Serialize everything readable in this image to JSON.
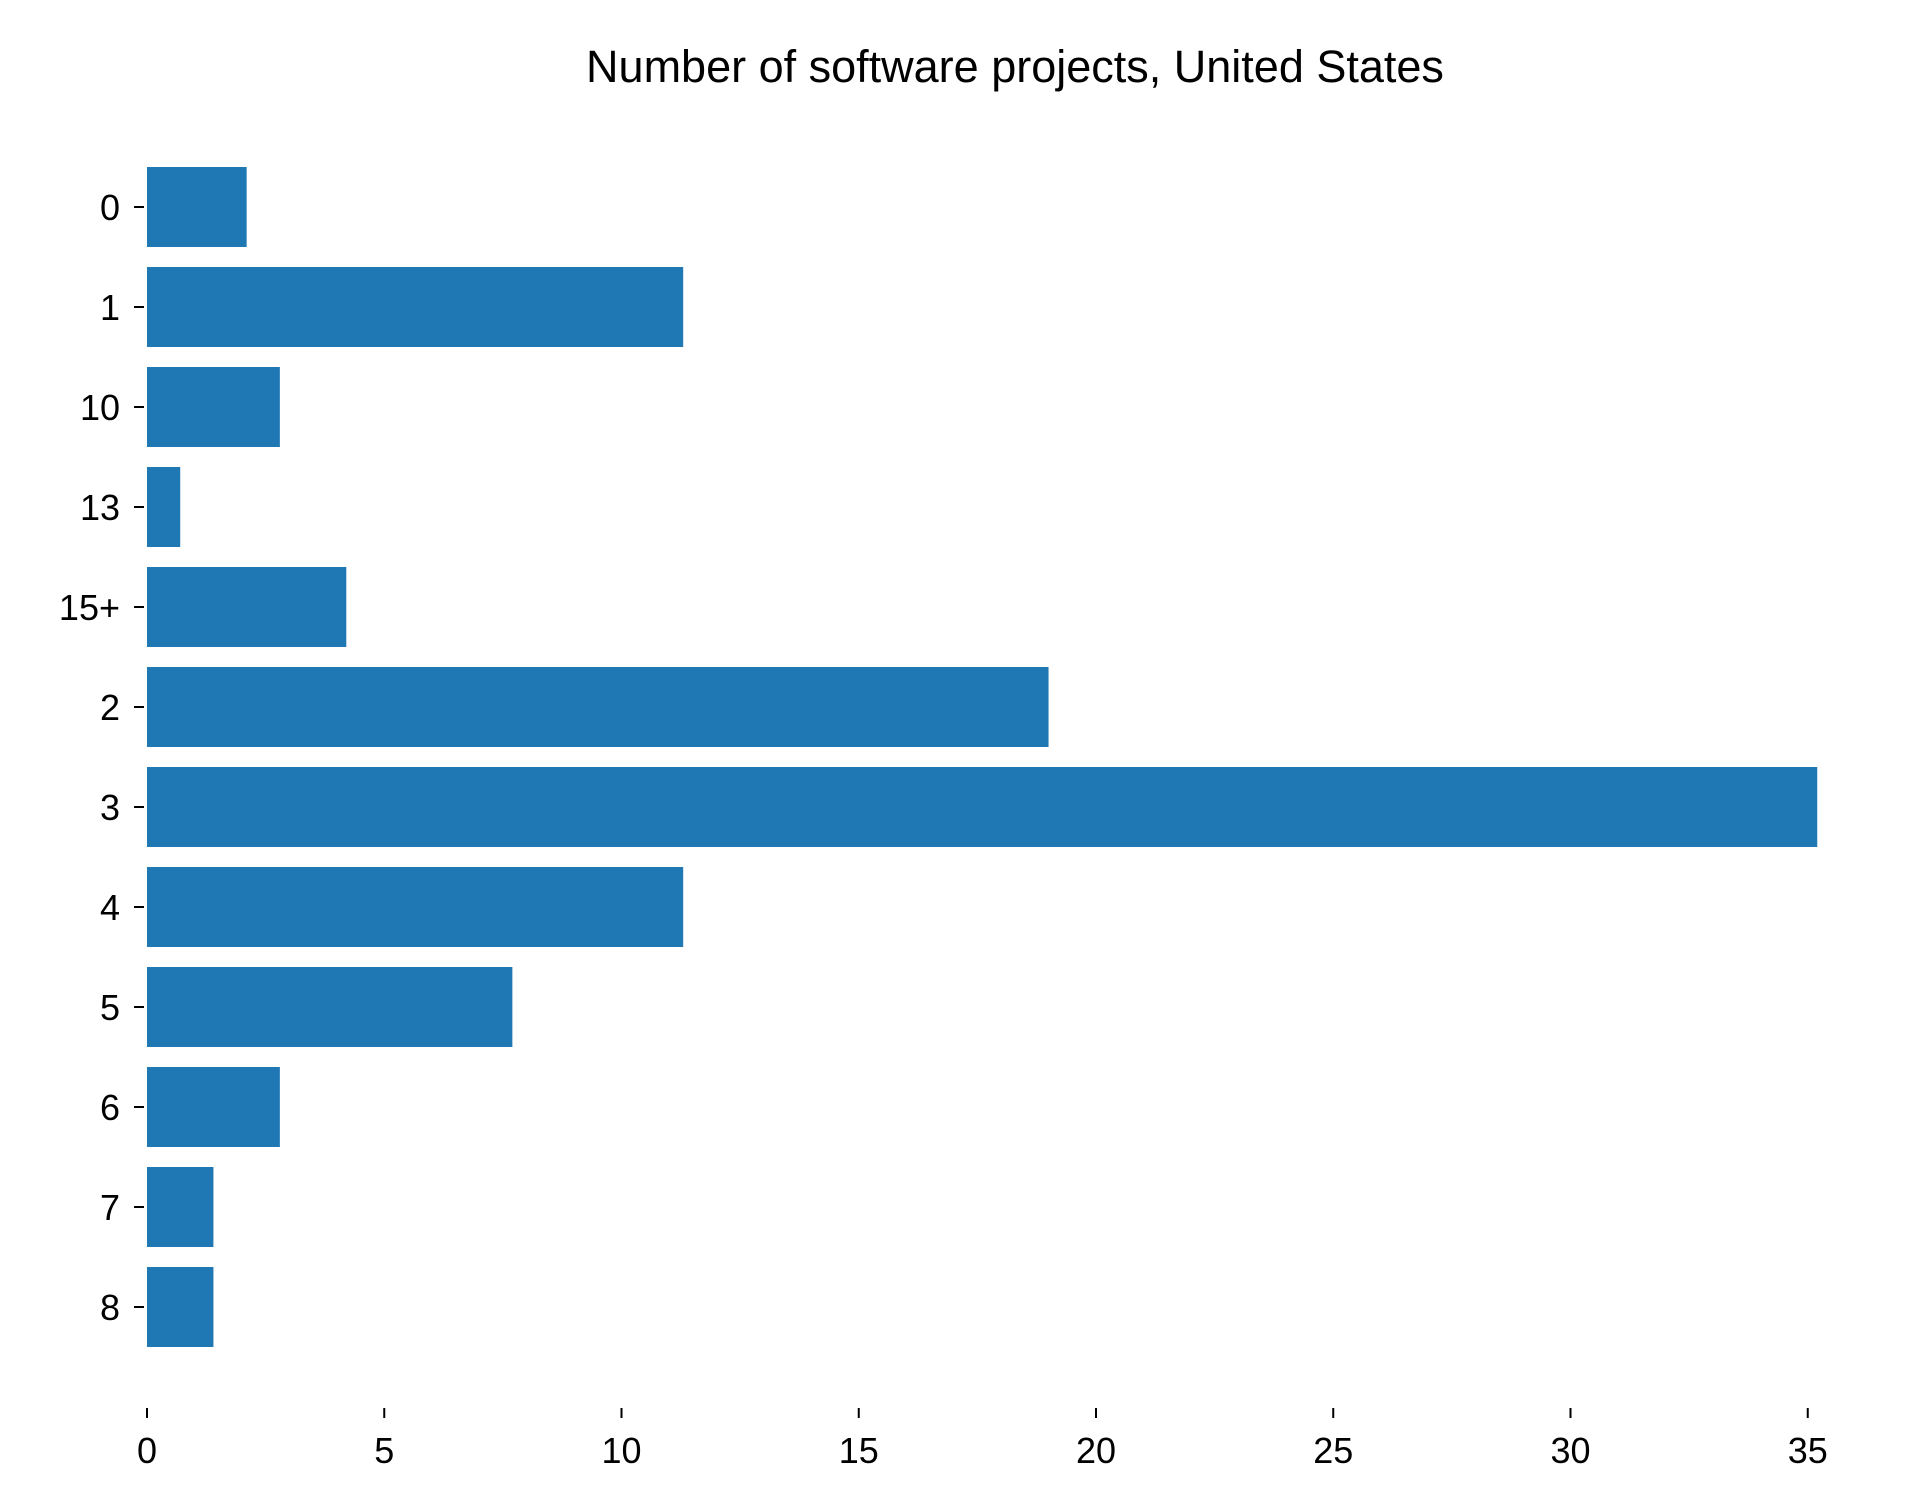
{
  "chart_data": {
    "type": "bar",
    "orientation": "horizontal",
    "title": "Number of software projects, United States",
    "xlabel": "",
    "ylabel": "",
    "categories": [
      "0",
      "1",
      "10",
      "13",
      "15+",
      "2",
      "3",
      "4",
      "5",
      "6",
      "7",
      "8"
    ],
    "values": [
      2.1,
      11.3,
      2.8,
      0.7,
      4.2,
      19.0,
      35.2,
      11.3,
      7.7,
      2.8,
      1.4,
      1.4
    ],
    "xlim": [
      0,
      36
    ],
    "xticks": [
      0,
      5,
      10,
      15,
      20,
      25,
      30,
      35
    ],
    "grid": false,
    "legend": "none",
    "bar_color": "#1f77b4"
  }
}
